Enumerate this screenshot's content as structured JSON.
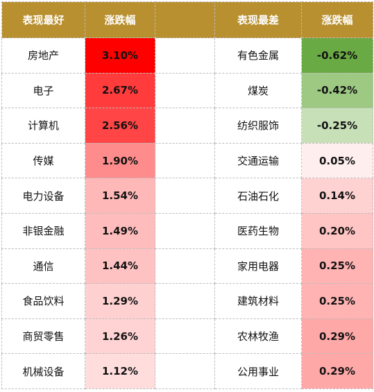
{
  "headers": {
    "best": "表现最好",
    "change1": "涨跌幅",
    "worst": "表现最差",
    "change2": "涨跌幅"
  },
  "rows": [
    {
      "best_name": "房地产",
      "best_val": "3.10%",
      "best_color": "#ff0000",
      "worst_name": "有色金属",
      "worst_val": "-0.62%",
      "worst_color": "#6aaa44"
    },
    {
      "best_name": "电子",
      "best_val": "2.67%",
      "best_color": "#ff3b3b",
      "worst_name": "煤炭",
      "worst_val": "-0.42%",
      "worst_color": "#9dc983"
    },
    {
      "best_name": "计算机",
      "best_val": "2.56%",
      "best_color": "#ff4545",
      "worst_name": "纺织服饰",
      "worst_val": "-0.25%",
      "worst_color": "#c8e0b8"
    },
    {
      "best_name": "传媒",
      "best_val": "1.90%",
      "best_color": "#ff8c8c",
      "worst_name": "交通运输",
      "worst_val": "0.05%",
      "worst_color": "#ffeeee"
    },
    {
      "best_name": "电力设备",
      "best_val": "1.54%",
      "best_color": "#ffb8b8",
      "worst_name": "石油石化",
      "worst_val": "0.14%",
      "worst_color": "#ffd2d2"
    },
    {
      "best_name": "非银金融",
      "best_val": "1.49%",
      "best_color": "#ffbcbc",
      "worst_name": "医药生物",
      "worst_val": "0.20%",
      "worst_color": "#ffc4c4"
    },
    {
      "best_name": "通信",
      "best_val": "1.44%",
      "best_color": "#ffc2c2",
      "worst_name": "家用电器",
      "worst_val": "0.25%",
      "worst_color": "#ffb3b3"
    },
    {
      "best_name": "食品饮料",
      "best_val": "1.29%",
      "best_color": "#ffd0d0",
      "worst_name": "建筑材料",
      "worst_val": "0.25%",
      "worst_color": "#ffb3b3"
    },
    {
      "best_name": "商贸零售",
      "best_val": "1.26%",
      "best_color": "#ffd3d3",
      "worst_name": "农林牧渔",
      "worst_val": "0.29%",
      "worst_color": "#ffa8a8"
    },
    {
      "best_name": "机械设备",
      "best_val": "1.12%",
      "best_color": "#ffdddd",
      "worst_name": "公用事业",
      "worst_val": "0.29%",
      "worst_color": "#ffa8a8"
    }
  ]
}
